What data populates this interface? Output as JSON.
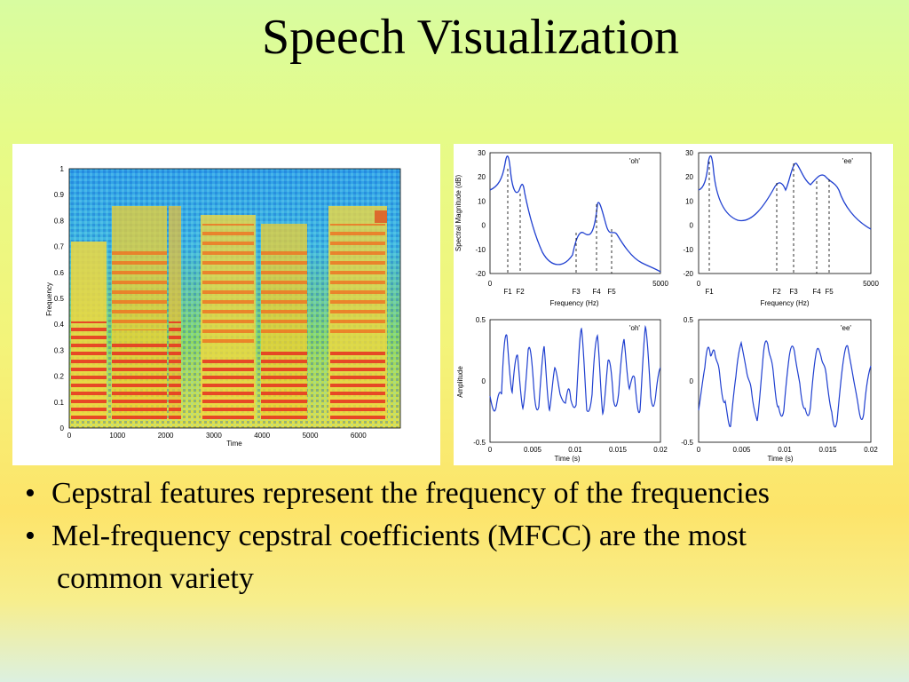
{
  "slide": {
    "title": "Speech Visualization",
    "bullets": [
      "Cepstral features represent the frequency of the frequencies",
      "Mel-frequency cepstral coefficients (MFCC) are the most",
      "common variety"
    ]
  },
  "spectrogram": {
    "ylabel": "Frequency",
    "xlabel": "Time",
    "yticks": [
      "0",
      "0.1",
      "0.2",
      "0.3",
      "0.4",
      "0.5",
      "0.6",
      "0.7",
      "0.8",
      "0.9",
      "1"
    ],
    "xticks": [
      "0",
      "1000",
      "2000",
      "3000",
      "4000",
      "5000",
      "6000"
    ]
  },
  "spectra": {
    "ylabel": "Spectral Magnitude (dB)",
    "xlabel": "Frequency (Hz)",
    "yticks": [
      "30",
      "20",
      "10",
      "0",
      "-10",
      "-20"
    ],
    "xticks": [
      "0",
      "5000"
    ],
    "oh": {
      "label": "'oh'",
      "formants": [
        "F1",
        "F2",
        "F3",
        "F4",
        "F5"
      ]
    },
    "ee": {
      "label": "'ee'",
      "formants": [
        "F1",
        "F2",
        "F3",
        "F4",
        "F5"
      ]
    }
  },
  "waveforms": {
    "ylabel": "Amplitude",
    "xlabel": "Time (s)",
    "yticks": [
      "0.5",
      "0",
      "-0.5"
    ],
    "xticks": [
      "0",
      "0.005",
      "0.01",
      "0.015",
      "0.02"
    ],
    "oh": {
      "label": "'oh'"
    },
    "ee": {
      "label": "'ee'"
    }
  }
}
